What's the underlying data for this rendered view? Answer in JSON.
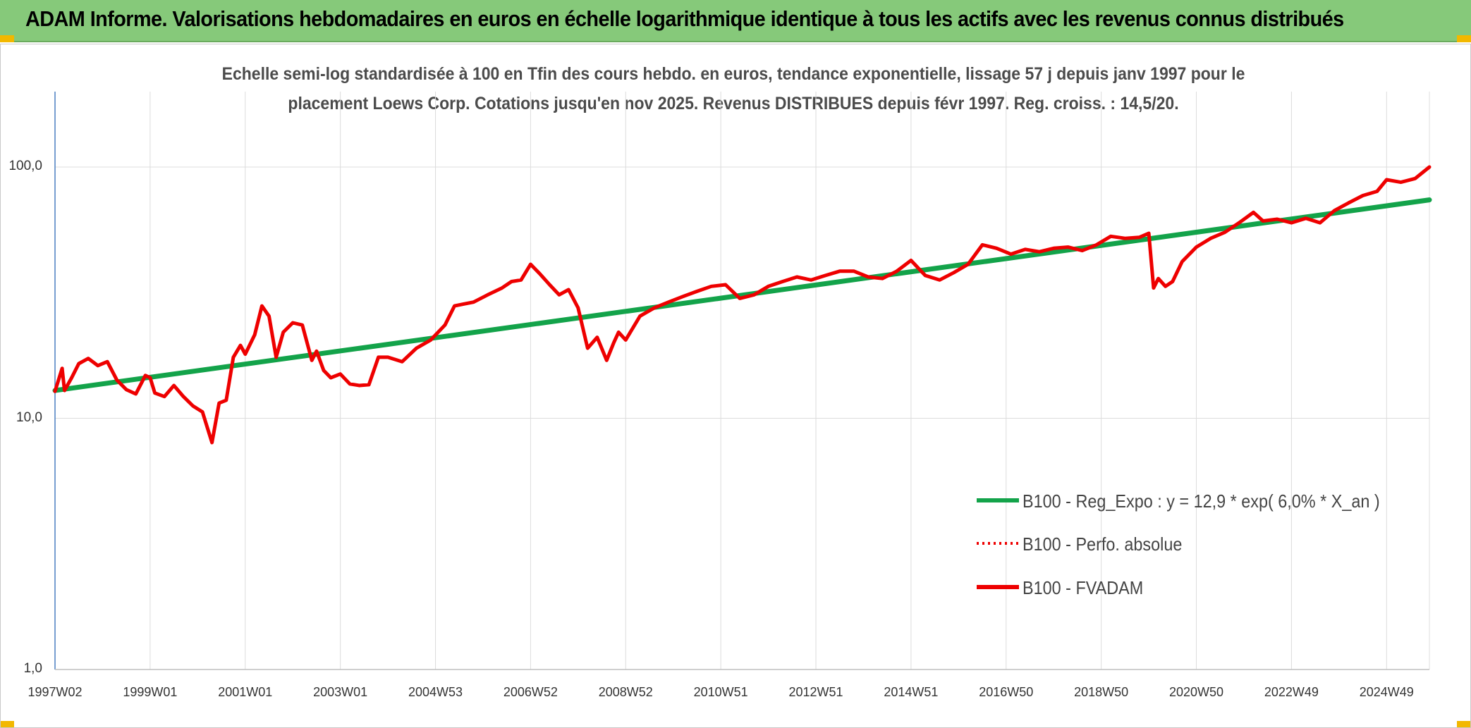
{
  "header": {
    "title": "ADAM Informe. Valorisations hebdomadaires en euros en échelle logarithmique identique à tous les actifs avec les revenus connus distribués"
  },
  "colors": {
    "banner": "#86c97a",
    "accent": "#f2b800",
    "trend": "#13a34a",
    "fvadam": "#ee0000",
    "perfo": "#ee0000",
    "grid": "#dcdcdc"
  },
  "chart_data": {
    "type": "line",
    "title": "",
    "subtitle_lines": [
      "Echelle semi-log standardisée à 100 en Tfin des cours hebdo. en euros, tendance exponentielle, lissage 57 j depuis janv 1997 pour le",
      "placement Loews Corp. Cotations jusqu'en nov 2025. Revenus DISTRIBUES depuis févr 1997. Reg. croiss. : 14,5/20."
    ],
    "y_scale": "log",
    "ylim": [
      1,
      200
    ],
    "y_ticks": [
      "1,0",
      "10,0",
      "100,0"
    ],
    "y_tick_values": [
      1,
      10,
      100
    ],
    "xlim": [
      1997.0,
      2025.9
    ],
    "x_ticks": [
      {
        "label": "1997W02",
        "x": 1997.0
      },
      {
        "label": "1999W01",
        "x": 1999.0
      },
      {
        "label": "2001W01",
        "x": 2001.0
      },
      {
        "label": "2003W01",
        "x": 2003.0
      },
      {
        "label": "2004W53",
        "x": 2005.0
      },
      {
        "label": "2006W52",
        "x": 2007.0
      },
      {
        "label": "2008W52",
        "x": 2009.0
      },
      {
        "label": "2010W51",
        "x": 2011.0
      },
      {
        "label": "2012W51",
        "x": 2013.0
      },
      {
        "label": "2014W51",
        "x": 2015.0
      },
      {
        "label": "2016W50",
        "x": 2017.0
      },
      {
        "label": "2018W50",
        "x": 2019.0
      },
      {
        "label": "2020W50",
        "x": 2021.0
      },
      {
        "label": "2022W49",
        "x": 2023.0
      },
      {
        "label": "2024W49",
        "x": 2025.0
      }
    ],
    "grid": true,
    "legend_position": "bottom-right",
    "series": [
      {
        "name": "B100 - Reg_Expo : y = 12,9 * exp( 6,0% *  X_an )",
        "style": "solid-thick",
        "x": [
          1997.0,
          2025.9
        ],
        "y": [
          12.9,
          74.0
        ]
      },
      {
        "name": "B100 - Perfo. absolue",
        "style": "dotted",
        "x": [],
        "y": []
      },
      {
        "name": "B100 - FVADAM",
        "style": "solid",
        "x": [
          1997.0,
          1997.15,
          1997.2,
          1997.35,
          1997.5,
          1997.7,
          1997.9,
          1998.1,
          1998.3,
          1998.5,
          1998.7,
          1998.9,
          1999.0,
          1999.1,
          1999.3,
          1999.5,
          1999.7,
          1999.9,
          2000.1,
          2000.3,
          2000.45,
          2000.6,
          2000.75,
          2000.9,
          2001.0,
          2001.2,
          2001.35,
          2001.5,
          2001.65,
          2001.8,
          2002.0,
          2002.2,
          2002.4,
          2002.5,
          2002.65,
          2002.8,
          2003.0,
          2003.2,
          2003.4,
          2003.6,
          2003.8,
          2004.0,
          2004.3,
          2004.6,
          2004.9,
          2005.2,
          2005.4,
          2005.6,
          2005.8,
          2006.1,
          2006.4,
          2006.6,
          2006.8,
          2007.0,
          2007.2,
          2007.4,
          2007.6,
          2007.8,
          2008.0,
          2008.2,
          2008.4,
          2008.6,
          2008.75,
          2008.85,
          2009.0,
          2009.3,
          2009.6,
          2009.9,
          2010.2,
          2010.5,
          2010.8,
          2011.1,
          2011.4,
          2011.7,
          2012.0,
          2012.3,
          2012.6,
          2012.9,
          2013.2,
          2013.5,
          2013.8,
          2014.1,
          2014.4,
          2014.7,
          2015.0,
          2015.3,
          2015.6,
          2015.9,
          2016.2,
          2016.5,
          2016.8,
          2017.1,
          2017.4,
          2017.7,
          2018.0,
          2018.3,
          2018.6,
          2018.9,
          2019.2,
          2019.5,
          2019.8,
          2020.0,
          2020.1,
          2020.2,
          2020.35,
          2020.5,
          2020.7,
          2021.0,
          2021.3,
          2021.6,
          2021.9,
          2022.2,
          2022.4,
          2022.7,
          2023.0,
          2023.3,
          2023.6,
          2023.9,
          2024.2,
          2024.5,
          2024.8,
          2025.0,
          2025.3,
          2025.6,
          2025.9
        ],
        "y": [
          12.8,
          15.8,
          12.9,
          14.5,
          16.5,
          17.3,
          16.2,
          16.8,
          14.2,
          13.0,
          12.5,
          14.8,
          14.5,
          12.6,
          12.2,
          13.5,
          12.2,
          11.2,
          10.6,
          8.0,
          11.5,
          11.8,
          17.5,
          19.5,
          18.0,
          21.5,
          28.0,
          25.5,
          17.5,
          22.0,
          24.0,
          23.5,
          17.0,
          18.5,
          15.5,
          14.5,
          15.0,
          13.7,
          13.5,
          13.6,
          17.5,
          17.5,
          16.8,
          19.0,
          20.5,
          23.5,
          28.0,
          28.5,
          29.0,
          31.0,
          33.0,
          35.0,
          35.5,
          41.0,
          37.5,
          34.0,
          31.0,
          32.5,
          27.5,
          19.0,
          21.0,
          17.0,
          20.0,
          22.0,
          20.5,
          25.5,
          27.5,
          29.0,
          30.5,
          32.0,
          33.5,
          34.0,
          30.0,
          31.0,
          33.5,
          35.0,
          36.5,
          35.5,
          37.0,
          38.5,
          38.5,
          36.5,
          36.0,
          38.5,
          42.5,
          37.0,
          35.5,
          38.0,
          41.0,
          49.0,
          47.5,
          45.0,
          47.0,
          46.0,
          47.5,
          48.0,
          46.5,
          49.0,
          53.0,
          52.0,
          52.5,
          54.5,
          33.0,
          36.0,
          33.5,
          35.0,
          42.0,
          48.0,
          52.0,
          55.0,
          60.0,
          66.0,
          61.0,
          62.0,
          60.0,
          62.5,
          60.0,
          67.0,
          72.0,
          77.0,
          80.0,
          89.0,
          87.0,
          90.0,
          100.0
        ]
      }
    ]
  }
}
